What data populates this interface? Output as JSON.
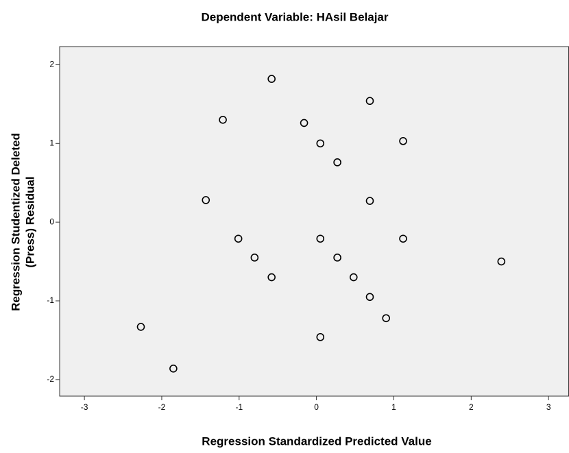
{
  "chart_data": {
    "type": "scatter",
    "title": "Dependent Variable: HAsil Belajar",
    "xlabel": "Regression Standardized Predicted Value",
    "ylabel": [
      "Regression Studentized Deleted",
      "(Press) Residual"
    ],
    "x": [
      -0.58,
      0.69,
      -1.21,
      -0.16,
      0.05,
      1.12,
      0.27,
      -1.43,
      0.69,
      -1.01,
      0.05,
      1.12,
      -0.8,
      0.27,
      2.39,
      -0.58,
      0.48,
      0.69,
      0.9,
      -2.27,
      0.05,
      -1.85
    ],
    "values": [
      1.82,
      1.54,
      1.3,
      1.26,
      1.0,
      1.03,
      0.76,
      0.28,
      0.27,
      -0.21,
      -0.21,
      -0.21,
      -0.45,
      -0.45,
      -0.5,
      -0.7,
      -0.7,
      -0.95,
      -1.22,
      -1.33,
      -1.46,
      -1.86
    ],
    "xlim": [
      -3.32,
      3.26
    ],
    "ylim": [
      -2.21,
      2.23
    ],
    "xticks": [
      -3,
      -2,
      -1,
      0,
      1,
      2,
      3
    ],
    "yticks": [
      -2,
      -1,
      0,
      1,
      2
    ],
    "color": "#000000",
    "background": "#f0f0f0"
  }
}
